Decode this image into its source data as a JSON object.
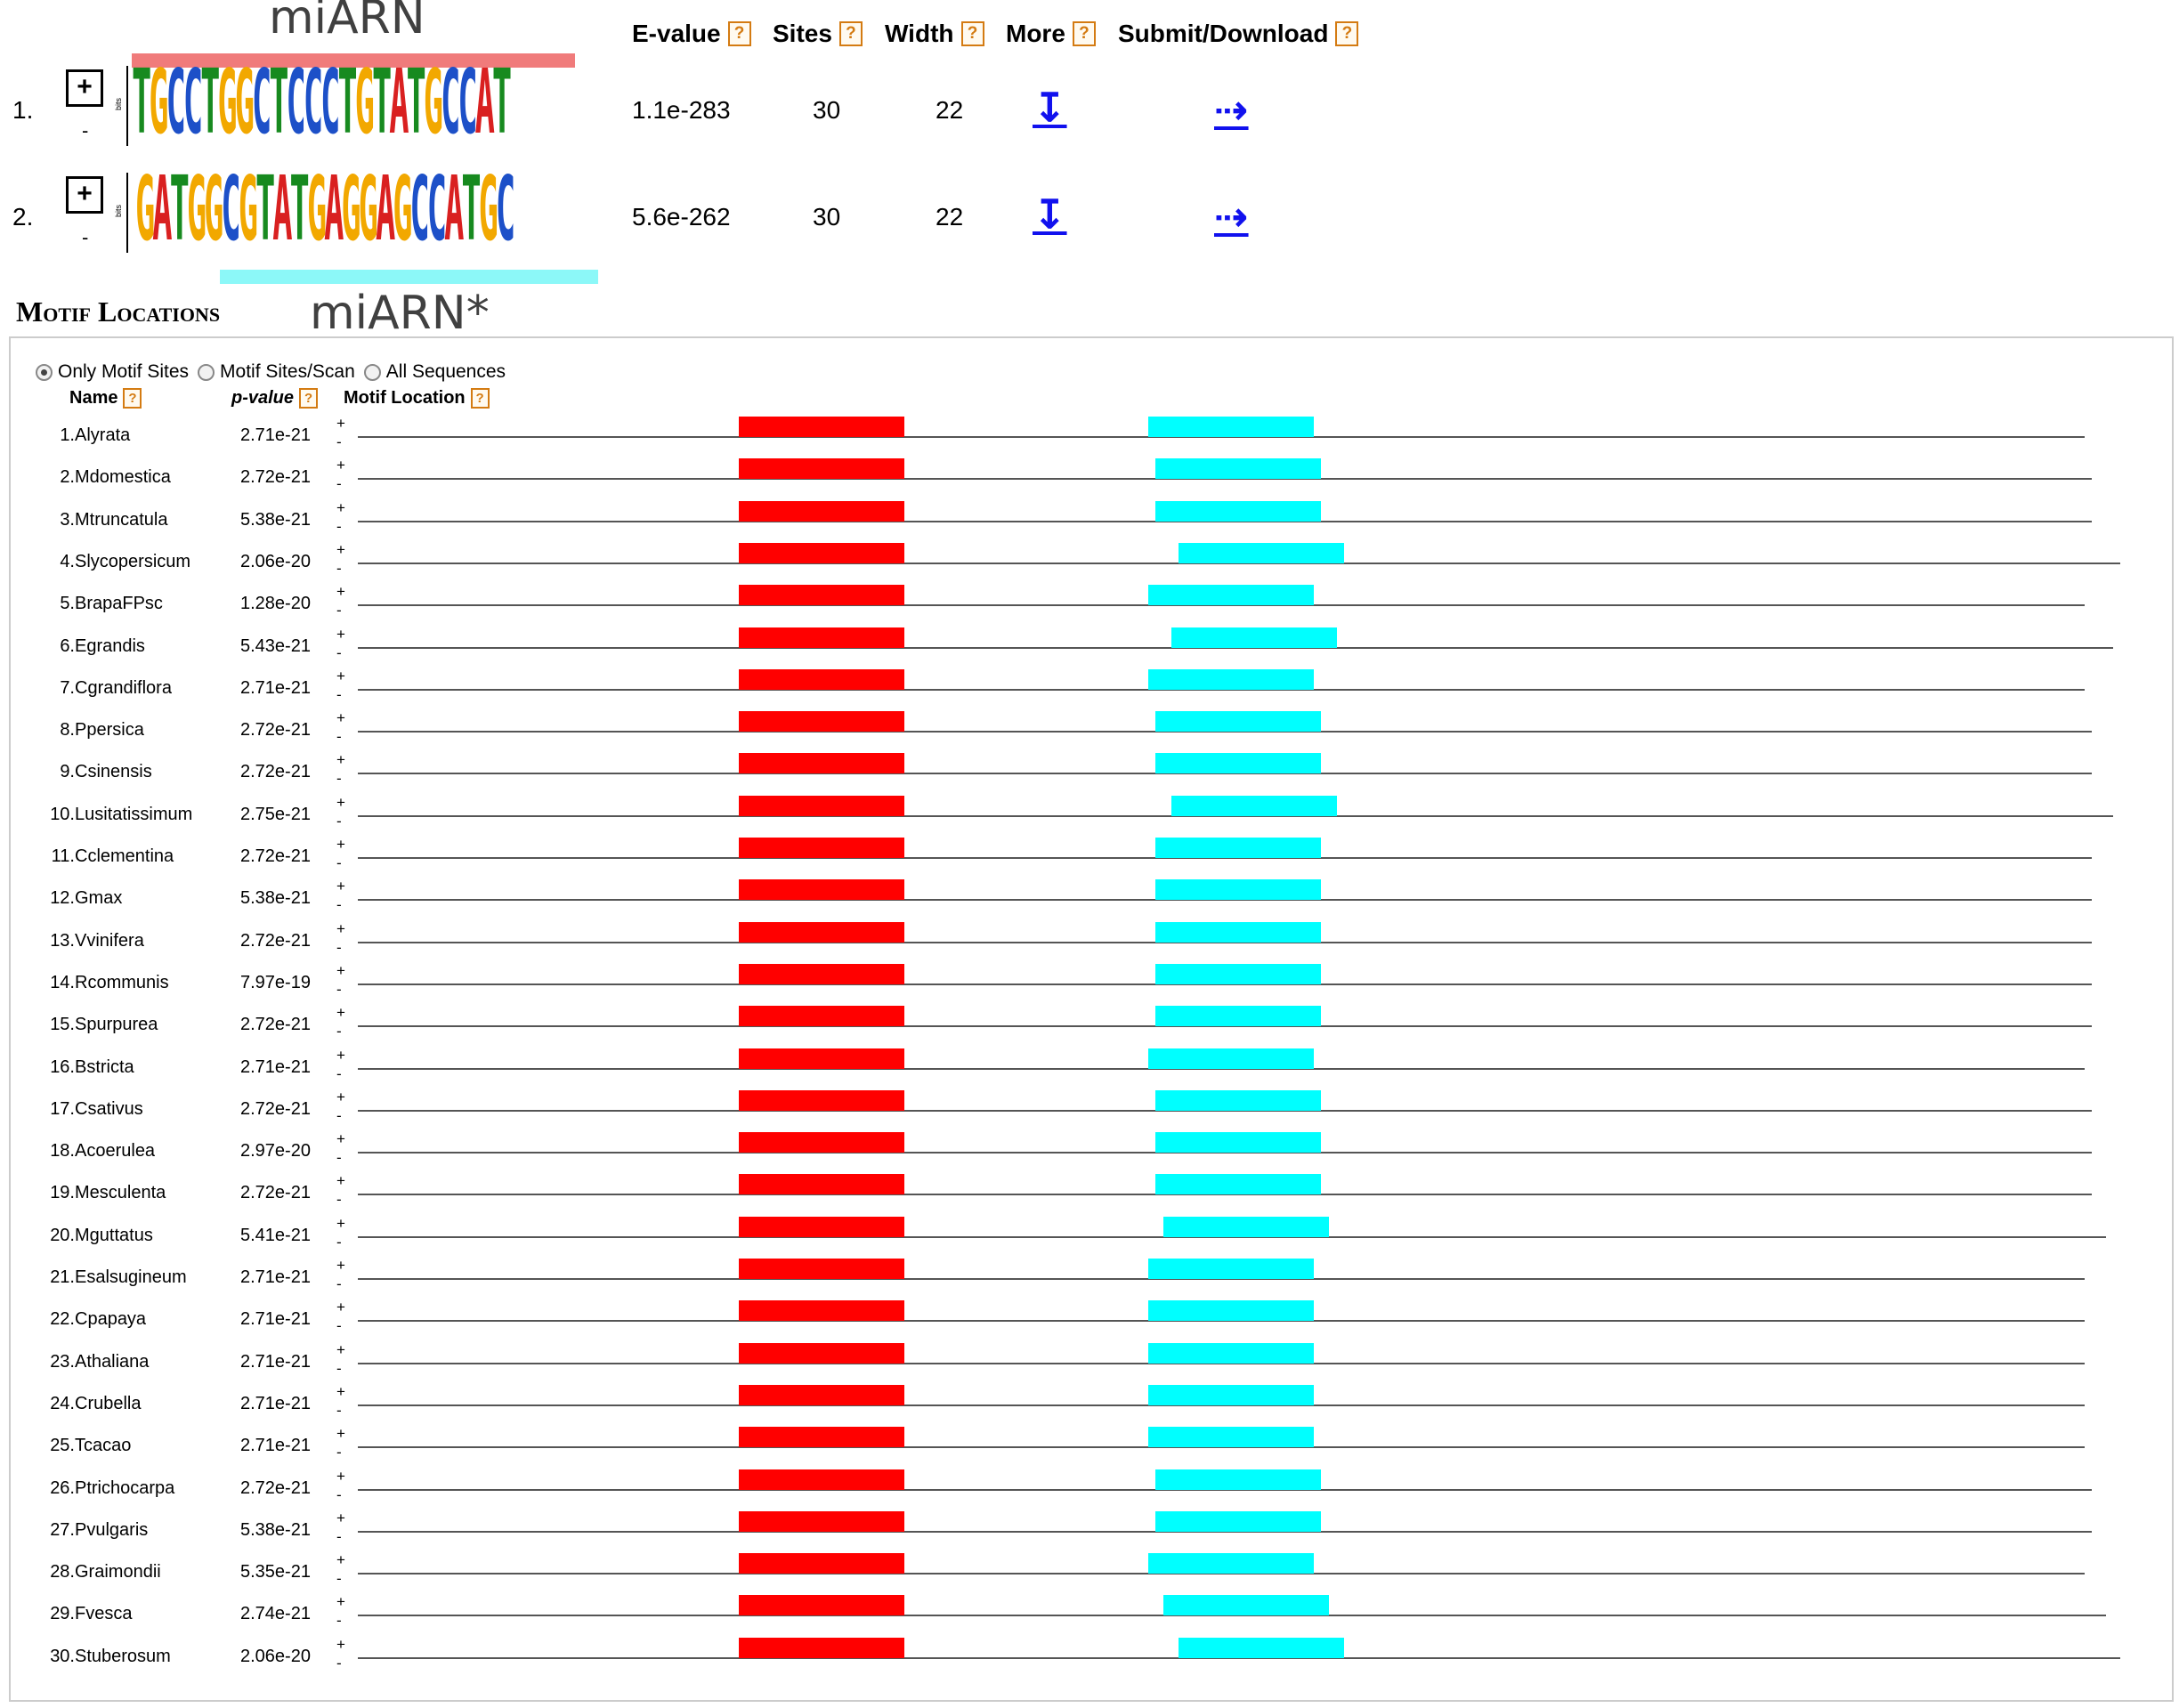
{
  "annotations": {
    "motif1_label": "miARN",
    "motif2_label": "miARN*",
    "motif1_color": "#f07b7b",
    "motif2_color": "#8cf8f8"
  },
  "table_header": {
    "evalue": "E-value",
    "sites": "Sites",
    "width": "Width",
    "more": "More",
    "submit": "Submit/Download",
    "help": "?"
  },
  "motifs": [
    {
      "num": "1.",
      "expand": "+",
      "collapse": "-",
      "logo": "TGCCTGGCTCCCTGTATGCCAT",
      "bits_label": "bits",
      "evalue": "1.1e-283",
      "sites": "30",
      "width": "22",
      "more_icon": "↧",
      "submit_icon": "⇢"
    },
    {
      "num": "2.",
      "expand": "+",
      "collapse": "-",
      "logo": "GATGGCGTATGAGGAGCCATGC",
      "bits_label": "bits",
      "evalue": "5.6e-262",
      "sites": "30",
      "width": "22",
      "more_icon": "↧",
      "submit_icon": "⇢"
    }
  ],
  "section_title": "Motif Locations",
  "options": [
    "Only Motif Sites",
    "Motif Sites/Scan",
    "All Sequences"
  ],
  "selected_option": 0,
  "columns": {
    "name": "Name",
    "pvalue": "p-value",
    "location": "Motif Location"
  },
  "strand": {
    "plus": "+",
    "minus": "-"
  },
  "colors": {
    "motif1": "#ff0000",
    "motif2": "#00ffff",
    "A": "#d92020",
    "C": "#1d50c8",
    "G": "#f2a800",
    "T": "#178a1f"
  },
  "sites": [
    {
      "num": "1.",
      "name": "Alyrata",
      "pvalue": "2.71e-21"
    },
    {
      "num": "2.",
      "name": "Mdomestica",
      "pvalue": "2.72e-21"
    },
    {
      "num": "3.",
      "name": "Mtruncatula",
      "pvalue": "5.38e-21"
    },
    {
      "num": "4.",
      "name": "Slycopersicum",
      "pvalue": "2.06e-20"
    },
    {
      "num": "5.",
      "name": "BrapaFPsc",
      "pvalue": "1.28e-20"
    },
    {
      "num": "6.",
      "name": "Egrandis",
      "pvalue": "5.43e-21"
    },
    {
      "num": "7.",
      "name": "Cgrandiflora",
      "pvalue": "2.71e-21"
    },
    {
      "num": "8.",
      "name": "Ppersica",
      "pvalue": "2.72e-21"
    },
    {
      "num": "9.",
      "name": "Csinensis",
      "pvalue": "2.72e-21"
    },
    {
      "num": "10.",
      "name": "Lusitatissimum",
      "pvalue": "2.75e-21"
    },
    {
      "num": "11.",
      "name": "Cclementina",
      "pvalue": "2.72e-21"
    },
    {
      "num": "12.",
      "name": "Gmax",
      "pvalue": "5.38e-21"
    },
    {
      "num": "13.",
      "name": "Vvinifera",
      "pvalue": "2.72e-21"
    },
    {
      "num": "14.",
      "name": "Rcommunis",
      "pvalue": "7.97e-19"
    },
    {
      "num": "15.",
      "name": "Spurpurea",
      "pvalue": "2.72e-21"
    },
    {
      "num": "16.",
      "name": "Bstricta",
      "pvalue": "2.71e-21"
    },
    {
      "num": "17.",
      "name": "Csativus",
      "pvalue": "2.72e-21"
    },
    {
      "num": "18.",
      "name": "Acoerulea",
      "pvalue": "2.97e-20"
    },
    {
      "num": "19.",
      "name": "Mesculenta",
      "pvalue": "2.72e-21"
    },
    {
      "num": "20.",
      "name": "Mguttatus",
      "pvalue": "5.41e-21"
    },
    {
      "num": "21.",
      "name": "Esalsugineum",
      "pvalue": "2.71e-21"
    },
    {
      "num": "22.",
      "name": "Cpapaya",
      "pvalue": "2.71e-21"
    },
    {
      "num": "23.",
      "name": "Athaliana",
      "pvalue": "2.71e-21"
    },
    {
      "num": "24.",
      "name": "Crubella",
      "pvalue": "2.71e-21"
    },
    {
      "num": "25.",
      "name": "Tcacao",
      "pvalue": "2.71e-21"
    },
    {
      "num": "26.",
      "name": "Ptrichocarpa",
      "pvalue": "2.72e-21"
    },
    {
      "num": "27.",
      "name": "Pvulgaris",
      "pvalue": "5.38e-21"
    },
    {
      "num": "28.",
      "name": "Graimondii",
      "pvalue": "5.35e-21"
    },
    {
      "num": "29.",
      "name": "Fvesca",
      "pvalue": "2.74e-21"
    },
    {
      "num": "30.",
      "name": "Stuberosum",
      "pvalue": "2.06e-20"
    }
  ]
}
